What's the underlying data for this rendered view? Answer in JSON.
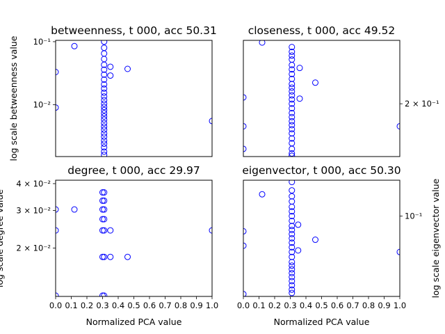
{
  "chart_data": [
    {
      "type": "scatter",
      "title": "betweenness, t 000, acc 50.31",
      "xlabel": "",
      "ylabel": "log scale betweenness value",
      "y_axis_side": "left",
      "yscale": "log",
      "xlim": [
        0,
        1
      ],
      "ylim": [
        0.0015,
        0.105
      ],
      "xticks": [],
      "yticks": [
        {
          "value": 0.01,
          "label": "10⁻²"
        },
        {
          "value": 0.1,
          "label": "10⁻¹"
        }
      ],
      "points": [
        [
          0.0,
          0.033
        ],
        [
          0.0,
          0.009
        ],
        [
          0.12,
          0.085
        ],
        [
          1.0,
          0.0055
        ],
        [
          0.31,
          0.1
        ],
        [
          0.31,
          0.08
        ],
        [
          0.31,
          0.065
        ],
        [
          0.31,
          0.053
        ],
        [
          0.31,
          0.043
        ],
        [
          0.31,
          0.036
        ],
        [
          0.31,
          0.03
        ],
        [
          0.31,
          0.025
        ],
        [
          0.31,
          0.021
        ],
        [
          0.31,
          0.018
        ],
        [
          0.31,
          0.0155
        ],
        [
          0.31,
          0.0135
        ],
        [
          0.31,
          0.0118
        ],
        [
          0.31,
          0.0104
        ],
        [
          0.31,
          0.0092
        ],
        [
          0.31,
          0.0082
        ],
        [
          0.31,
          0.0073
        ],
        [
          0.31,
          0.0065
        ],
        [
          0.31,
          0.0058
        ],
        [
          0.31,
          0.0051
        ],
        [
          0.31,
          0.0045
        ],
        [
          0.31,
          0.004
        ],
        [
          0.31,
          0.0035
        ],
        [
          0.31,
          0.0031
        ],
        [
          0.31,
          0.0027
        ],
        [
          0.31,
          0.0024
        ],
        [
          0.31,
          0.0021
        ],
        [
          0.31,
          0.0018
        ],
        [
          0.31,
          0.0016
        ],
        [
          0.35,
          0.04
        ],
        [
          0.35,
          0.029
        ],
        [
          0.46,
          0.037
        ]
      ]
    },
    {
      "type": "scatter",
      "title": "closeness, t 000, acc 49.52",
      "xlabel": "",
      "ylabel": "",
      "y_axis_side": "right",
      "yscale": "log",
      "xlim": [
        0,
        1
      ],
      "ylim": [
        0.11,
        0.41
      ],
      "xticks": [],
      "yticks": [
        {
          "value": 0.2,
          "label": "2 × 10⁻¹"
        }
      ],
      "points": [
        [
          0.0,
          0.215
        ],
        [
          0.0,
          0.155
        ],
        [
          0.0,
          0.12
        ],
        [
          0.12,
          0.4
        ],
        [
          1.0,
          0.155
        ],
        [
          0.31,
          0.38
        ],
        [
          0.31,
          0.36
        ],
        [
          0.31,
          0.345
        ],
        [
          0.31,
          0.33
        ],
        [
          0.31,
          0.31
        ],
        [
          0.31,
          0.295
        ],
        [
          0.31,
          0.28
        ],
        [
          0.31,
          0.265
        ],
        [
          0.31,
          0.25
        ],
        [
          0.31,
          0.24
        ],
        [
          0.31,
          0.23
        ],
        [
          0.31,
          0.22
        ],
        [
          0.31,
          0.21
        ],
        [
          0.31,
          0.2
        ],
        [
          0.31,
          0.19
        ],
        [
          0.31,
          0.18
        ],
        [
          0.31,
          0.172
        ],
        [
          0.31,
          0.164
        ],
        [
          0.31,
          0.157
        ],
        [
          0.31,
          0.15
        ],
        [
          0.31,
          0.143
        ],
        [
          0.31,
          0.135
        ],
        [
          0.31,
          0.128
        ],
        [
          0.31,
          0.12
        ],
        [
          0.31,
          0.114
        ],
        [
          0.31,
          0.111
        ],
        [
          0.36,
          0.3
        ],
        [
          0.36,
          0.212
        ],
        [
          0.46,
          0.254
        ]
      ]
    },
    {
      "type": "scatter",
      "title": "degree, t 000, acc 29.97",
      "xlabel": "Normalized PCA value",
      "ylabel": "log scale degree value",
      "y_axis_side": "left",
      "yscale": "log",
      "xlim": [
        0,
        1
      ],
      "ylim": [
        0.0119,
        0.0415
      ],
      "xticks": [
        {
          "value": 0.0,
          "label": "0.0"
        },
        {
          "value": 0.1,
          "label": "0.1"
        },
        {
          "value": 0.2,
          "label": "0.2"
        },
        {
          "value": 0.3,
          "label": "0.3"
        },
        {
          "value": 0.4,
          "label": "0.4"
        },
        {
          "value": 0.5,
          "label": "0.5"
        },
        {
          "value": 0.6,
          "label": "0.6"
        },
        {
          "value": 0.7,
          "label": "0.7"
        },
        {
          "value": 0.8,
          "label": "0.8"
        },
        {
          "value": 0.9,
          "label": "0.9"
        },
        {
          "value": 1.0,
          "label": "1.0"
        }
      ],
      "yticks": [
        {
          "value": 0.02,
          "label": "2 × 10⁻²"
        },
        {
          "value": 0.03,
          "label": "3 × 10⁻²"
        },
        {
          "value": 0.04,
          "label": "4 × 10⁻²"
        }
      ],
      "points": [
        [
          0.0,
          0.0303
        ],
        [
          0.0,
          0.0242
        ],
        [
          0.0,
          0.012
        ],
        [
          0.12,
          0.0303
        ],
        [
          1.0,
          0.0242
        ],
        [
          0.3,
          0.0364
        ],
        [
          0.3,
          0.0333
        ],
        [
          0.3,
          0.0303
        ],
        [
          0.3,
          0.0273
        ],
        [
          0.3,
          0.0242
        ],
        [
          0.3,
          0.0182
        ],
        [
          0.3,
          0.012
        ],
        [
          0.31,
          0.0364
        ],
        [
          0.31,
          0.0333
        ],
        [
          0.31,
          0.0303
        ],
        [
          0.31,
          0.0273
        ],
        [
          0.31,
          0.0242
        ],
        [
          0.31,
          0.0182
        ],
        [
          0.31,
          0.012
        ],
        [
          0.35,
          0.0242
        ],
        [
          0.35,
          0.0182
        ],
        [
          0.46,
          0.0182
        ]
      ]
    },
    {
      "type": "scatter",
      "title": "eigenvector, t 000, acc 50.30",
      "xlabel": "Normalized PCA value",
      "ylabel": "log scale eigenvector value",
      "y_axis_side": "right",
      "yscale": "log",
      "xlim": [
        0,
        1
      ],
      "ylim": [
        0.051,
        0.135
      ],
      "xticks": [
        {
          "value": 0.0,
          "label": "0.0"
        },
        {
          "value": 0.1,
          "label": "0.1"
        },
        {
          "value": 0.2,
          "label": "0.2"
        },
        {
          "value": 0.3,
          "label": "0.3"
        },
        {
          "value": 0.4,
          "label": "0.4"
        },
        {
          "value": 0.5,
          "label": "0.5"
        },
        {
          "value": 0.6,
          "label": "0.6"
        },
        {
          "value": 0.7,
          "label": "0.7"
        },
        {
          "value": 0.8,
          "label": "0.8"
        },
        {
          "value": 0.9,
          "label": "0.9"
        },
        {
          "value": 1.0,
          "label": "1.0"
        }
      ],
      "yticks": [
        {
          "value": 0.1,
          "label": "10⁻¹"
        }
      ],
      "points": [
        [
          0.0,
          0.088
        ],
        [
          0.0,
          0.078
        ],
        [
          0.0,
          0.052
        ],
        [
          0.12,
          0.12
        ],
        [
          1.0,
          0.074
        ],
        [
          0.31,
          0.133
        ],
        [
          0.31,
          0.124
        ],
        [
          0.31,
          0.118
        ],
        [
          0.31,
          0.113
        ],
        [
          0.31,
          0.108
        ],
        [
          0.31,
          0.104
        ],
        [
          0.31,
          0.1
        ],
        [
          0.31,
          0.096
        ],
        [
          0.31,
          0.092
        ],
        [
          0.31,
          0.089
        ],
        [
          0.31,
          0.086
        ],
        [
          0.31,
          0.083
        ],
        [
          0.31,
          0.08
        ],
        [
          0.31,
          0.077
        ],
        [
          0.31,
          0.074
        ],
        [
          0.31,
          0.071
        ],
        [
          0.31,
          0.068
        ],
        [
          0.31,
          0.066
        ],
        [
          0.31,
          0.064
        ],
        [
          0.31,
          0.062
        ],
        [
          0.31,
          0.06
        ],
        [
          0.31,
          0.058
        ],
        [
          0.31,
          0.056
        ],
        [
          0.31,
          0.054
        ],
        [
          0.31,
          0.0525
        ],
        [
          0.35,
          0.093
        ],
        [
          0.35,
          0.075
        ],
        [
          0.46,
          0.082
        ]
      ]
    }
  ]
}
